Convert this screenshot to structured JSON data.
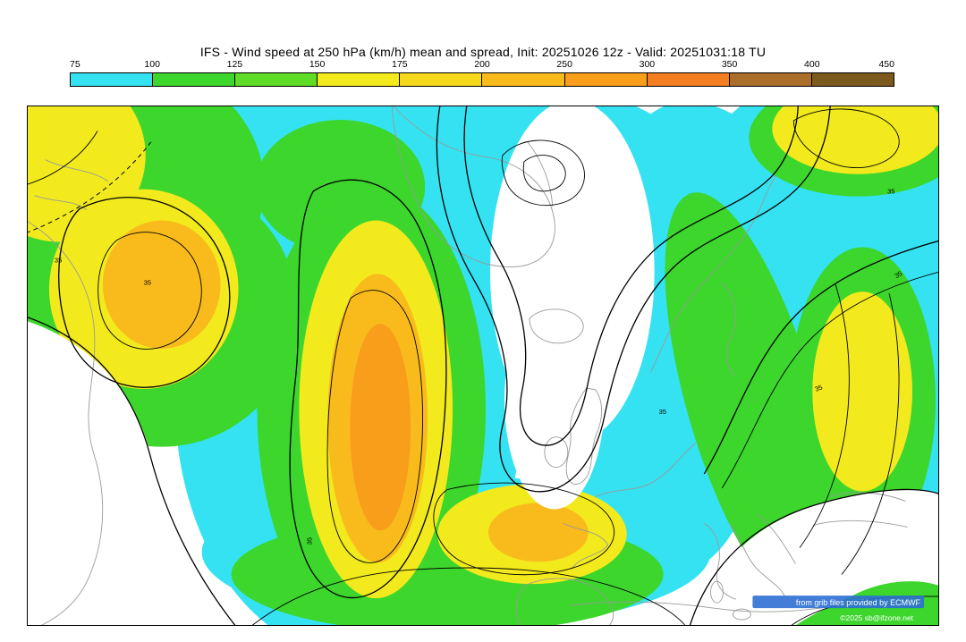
{
  "header": {
    "title": "IFS - Wind speed at 250 hPa (km/h) mean and spread, Init: 20251026 12z - Valid: 20251031:18 TU"
  },
  "colorbar": {
    "ticks": [
      "75",
      "100",
      "125",
      "150",
      "175",
      "200",
      "250",
      "300",
      "350",
      "400",
      "450"
    ],
    "segments": [
      {
        "range": "75-100",
        "color": "#35e2f2"
      },
      {
        "range": "100-125",
        "color": "#3cd62c"
      },
      {
        "range": "125-150",
        "color": "#5fdc25"
      },
      {
        "range": "150-175",
        "color": "#f2ea1c"
      },
      {
        "range": "175-200",
        "color": "#f6d91d"
      },
      {
        "range": "200-250",
        "color": "#f9bb1c"
      },
      {
        "range": "250-300",
        "color": "#f99e1b"
      },
      {
        "range": "300-350",
        "color": "#f57e20"
      },
      {
        "range": "350-400",
        "color": "#aa6d2a"
      },
      {
        "range": "400-450",
        "color": "#7c5a1d"
      }
    ]
  },
  "map": {
    "contour_labels": [
      "35",
      "35",
      "35",
      "35",
      "35",
      "35",
      "35"
    ],
    "credits": {
      "line1": "from grib files provided by ECMWF",
      "line2": "©2025 sb@ifzone.net"
    }
  }
}
